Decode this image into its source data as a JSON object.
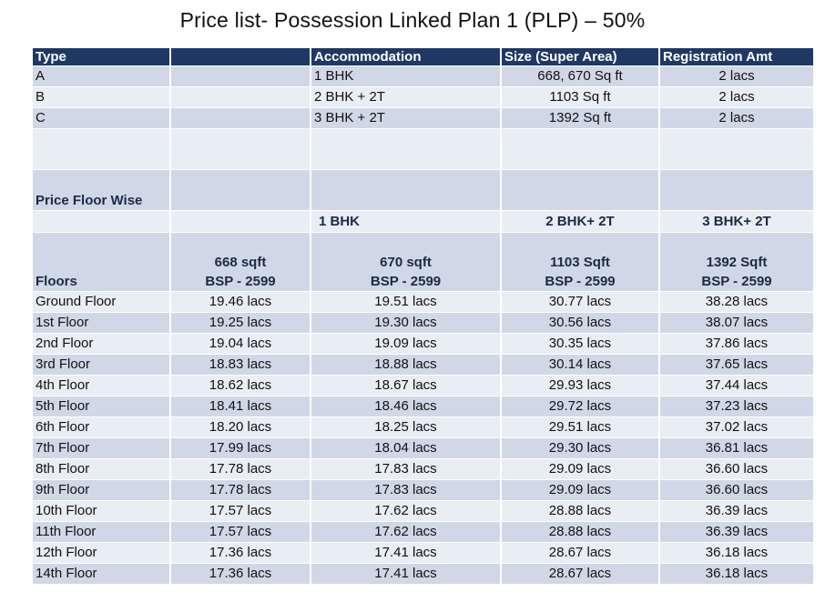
{
  "title": "Price list- Possession Linked Plan 1 (PLP) – 50%",
  "header": {
    "type": "Type",
    "blank": "",
    "accommodation": "Accommodation",
    "size": "Size (Super Area)",
    "registration": "Registration Amt"
  },
  "types": [
    {
      "type": "A",
      "accommodation": "1 BHK",
      "size": "668, 670 Sq ft",
      "registration": "2 lacs"
    },
    {
      "type": "B",
      "accommodation": "2 BHK + 2T",
      "size": "1103 Sq ft",
      "registration": "2 lacs"
    },
    {
      "type": "C",
      "accommodation": "3 BHK + 2T",
      "size": "1392 Sq ft",
      "registration": "2 lacs"
    }
  ],
  "price_floor_wise": {
    "label": "Price Floor Wise",
    "units": [
      "1 BHK",
      "2 BHK+ 2T",
      "3 BHK+ 2T"
    ],
    "floors_label": "Floors",
    "columns": [
      {
        "size": "668 sqft",
        "bsp": "BSP - 2599"
      },
      {
        "size": "670 sqft",
        "bsp": "BSP - 2599"
      },
      {
        "size": "1103 Sqft",
        "bsp": "BSP - 2599"
      },
      {
        "size": "1392 Sqft",
        "bsp": "BSP - 2599"
      }
    ],
    "rows": [
      {
        "floor": "Ground Floor",
        "prices": [
          "19.46 lacs",
          "19.51 lacs",
          "30.77 lacs",
          "38.28 lacs"
        ]
      },
      {
        "floor": "1st Floor",
        "prices": [
          "19.25 lacs",
          "19.30 lacs",
          "30.56 lacs",
          "38.07 lacs"
        ]
      },
      {
        "floor": "2nd Floor",
        "prices": [
          "19.04 lacs",
          "19.09 lacs",
          "30.35 lacs",
          "37.86 lacs"
        ]
      },
      {
        "floor": "3rd Floor",
        "prices": [
          "18.83 lacs",
          "18.88 lacs",
          "30.14 lacs",
          "37.65 lacs"
        ]
      },
      {
        "floor": "4th Floor",
        "prices": [
          "18.62 lacs",
          "18.67 lacs",
          "29.93 lacs",
          "37.44 lacs"
        ]
      },
      {
        "floor": "5th Floor",
        "prices": [
          "18.41 lacs",
          "18.46 lacs",
          "29.72 lacs",
          "37.23 lacs"
        ]
      },
      {
        "floor": "6th Floor",
        "prices": [
          "18.20 lacs",
          "18.25 lacs",
          "29.51 lacs",
          "37.02 lacs"
        ]
      },
      {
        "floor": "7th Floor",
        "prices": [
          "17.99 lacs",
          "18.04 lacs",
          "29.30 lacs",
          "36.81 lacs"
        ]
      },
      {
        "floor": "8th Floor",
        "prices": [
          "17.78 lacs",
          "17.83 lacs",
          "29.09 lacs",
          "36.60 lacs"
        ]
      },
      {
        "floor": "9th Floor",
        "prices": [
          "17.78 lacs",
          "17.83 lacs",
          "29.09 lacs",
          "36.60 lacs"
        ]
      },
      {
        "floor": "10th Floor",
        "prices": [
          "17.57 lacs",
          "17.62 lacs",
          "28.88 lacs",
          "36.39 lacs"
        ]
      },
      {
        "floor": "11th Floor",
        "prices": [
          "17.57 lacs",
          "17.62 lacs",
          "28.88 lacs",
          "36.39 lacs"
        ]
      },
      {
        "floor": "12th Floor",
        "prices": [
          "17.36 lacs",
          "17.41 lacs",
          "28.67 lacs",
          "36.18 lacs"
        ]
      },
      {
        "floor": "14th Floor",
        "prices": [
          "17.36 lacs",
          "17.41 lacs",
          "28.67 lacs",
          "36.18 lacs"
        ]
      }
    ]
  },
  "colors": {
    "header_bg": "#1f3864",
    "row_dark": "#d0d8e7",
    "row_light": "#e9edf4",
    "bold_text": "#1b2a44"
  }
}
